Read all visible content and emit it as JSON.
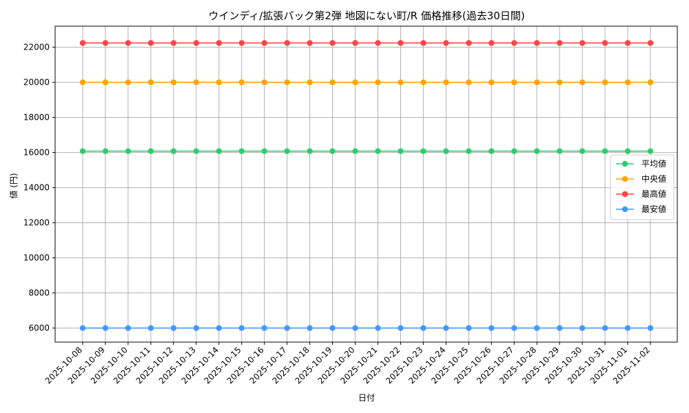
{
  "chart_data": {
    "type": "line",
    "title": "ウインディ/拡張パック第2弾 地図にない町/R 価格推移(過去30日間)",
    "xlabel": "日付",
    "ylabel": "値 (円)",
    "ylim": [
      5200,
      23200
    ],
    "yticks": [
      6000,
      8000,
      10000,
      12000,
      14000,
      16000,
      18000,
      20000,
      22000
    ],
    "grid": true,
    "legend_position": "center-right",
    "categories": [
      "2025-10-08",
      "2025-10-09",
      "2025-10-10",
      "2025-10-11",
      "2025-10-12",
      "2025-10-13",
      "2025-10-14",
      "2025-10-15",
      "2025-10-16",
      "2025-10-17",
      "2025-10-18",
      "2025-10-19",
      "2025-10-20",
      "2025-10-21",
      "2025-10-22",
      "2025-10-23",
      "2025-10-24",
      "2025-10-25",
      "2025-10-26",
      "2025-10-27",
      "2025-10-28",
      "2025-10-29",
      "2025-10-30",
      "2025-10-31",
      "2025-11-01",
      "2025-11-02"
    ],
    "series": [
      {
        "name": "平均値",
        "color": "#2ecc71",
        "values": [
          16080,
          16080,
          16080,
          16080,
          16080,
          16080,
          16080,
          16080,
          16080,
          16080,
          16080,
          16080,
          16080,
          16080,
          16080,
          16080,
          16080,
          16080,
          16080,
          16080,
          16080,
          16080,
          16080,
          16080,
          16080,
          16080
        ]
      },
      {
        "name": "中央値",
        "color": "#ffa500",
        "values": [
          20000,
          20000,
          20000,
          20000,
          20000,
          20000,
          20000,
          20000,
          20000,
          20000,
          20000,
          20000,
          20000,
          20000,
          20000,
          20000,
          20000,
          20000,
          20000,
          20000,
          20000,
          20000,
          20000,
          20000,
          20000,
          20000
        ]
      },
      {
        "name": "最高値",
        "color": "#ff4444",
        "values": [
          22240,
          22240,
          22240,
          22240,
          22240,
          22240,
          22240,
          22240,
          22240,
          22240,
          22240,
          22240,
          22240,
          22240,
          22240,
          22240,
          22240,
          22240,
          22240,
          22240,
          22240,
          22240,
          22240,
          22240,
          22240,
          22240
        ]
      },
      {
        "name": "最安値",
        "color": "#4499ff",
        "values": [
          6000,
          6000,
          6000,
          6000,
          6000,
          6000,
          6000,
          6000,
          6000,
          6000,
          6000,
          6000,
          6000,
          6000,
          6000,
          6000,
          6000,
          6000,
          6000,
          6000,
          6000,
          6000,
          6000,
          6000,
          6000,
          6000
        ]
      }
    ]
  }
}
